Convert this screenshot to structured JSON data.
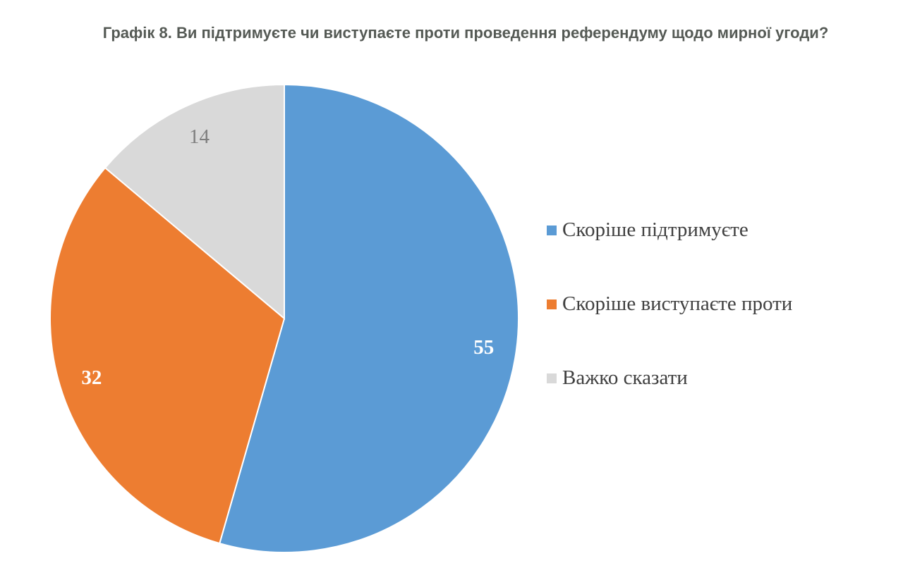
{
  "chart_data": {
    "type": "pie",
    "title": "Графік 8. Ви підтримуєте чи виступаєте проти проведення референдуму щодо мирної угоди?",
    "categories": [
      "Скоріше підтримуєте",
      "Скоріше виступаєте проти",
      "Важко сказати"
    ],
    "values": [
      55,
      32,
      14
    ],
    "colors": [
      "#5b9bd5",
      "#ed7d31",
      "#d9d9d9"
    ],
    "label_colors": [
      "#ffffff",
      "#ffffff",
      "#7f7f7f"
    ],
    "start_angle": "top",
    "direction": "clockwise",
    "legend_position": "right"
  }
}
